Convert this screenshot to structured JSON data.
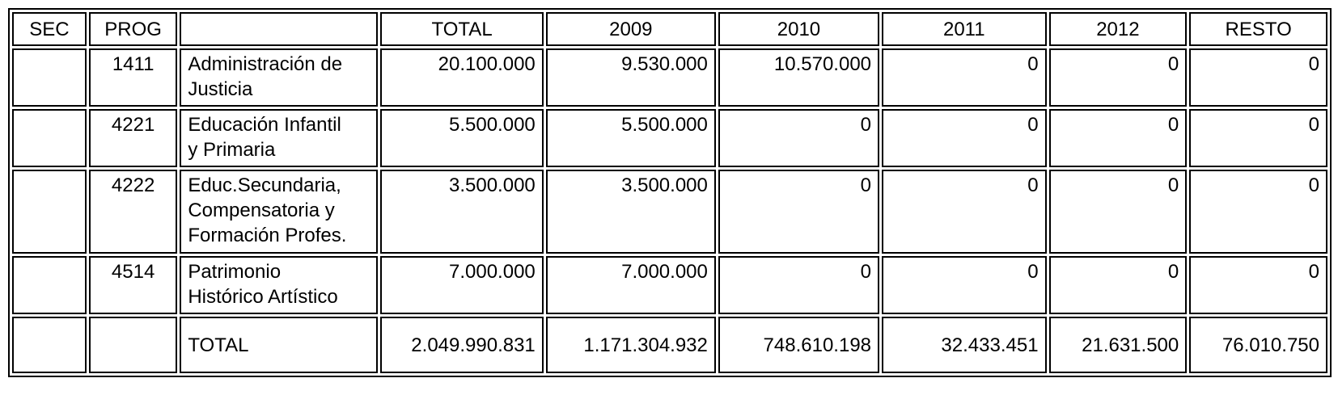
{
  "table": {
    "headers": {
      "sec": "SEC",
      "prog": "PROG",
      "desc": "",
      "total": "TOTAL",
      "y2009": "2009",
      "y2010": "2010",
      "y2011": "2011",
      "y2012": "2012",
      "resto": "RESTO"
    },
    "rows": [
      {
        "sec": "",
        "prog": "1411",
        "desc_line1": "Administración de",
        "desc_line2": "Justicia",
        "desc_line3": "",
        "total": "20.100.000",
        "y2009": "9.530.000",
        "y2010": "10.570.000",
        "y2011": "0",
        "y2012": "0",
        "resto": "0"
      },
      {
        "sec": "",
        "prog": "4221",
        "desc_line1": "Educación Infantil",
        "desc_line2": "y Primaria",
        "desc_line3": "",
        "total": "5.500.000",
        "y2009": "5.500.000",
        "y2010": "0",
        "y2011": "0",
        "y2012": "0",
        "resto": "0"
      },
      {
        "sec": "",
        "prog": "4222",
        "desc_line1": "Educ.Secundaria,",
        "desc_line2": "Compensatoria y",
        "desc_line3": "Formación Profes.",
        "total": "3.500.000",
        "y2009": "3.500.000",
        "y2010": "0",
        "y2011": "0",
        "y2012": "0",
        "resto": "0"
      },
      {
        "sec": "",
        "prog": "4514",
        "desc_line1": "Patrimonio",
        "desc_line2": "Histórico Artístico",
        "desc_line3": "",
        "total": "7.000.000",
        "y2009": "7.000.000",
        "y2010": "0",
        "y2011": "0",
        "y2012": "0",
        "resto": "0"
      }
    ],
    "total_row": {
      "sec": "",
      "prog": "",
      "label": "TOTAL",
      "total": "2.049.990.831",
      "y2009": "1.171.304.932",
      "y2010": "748.610.198",
      "y2011": "32.433.451",
      "y2012": "21.631.500",
      "resto": "76.010.750"
    }
  }
}
